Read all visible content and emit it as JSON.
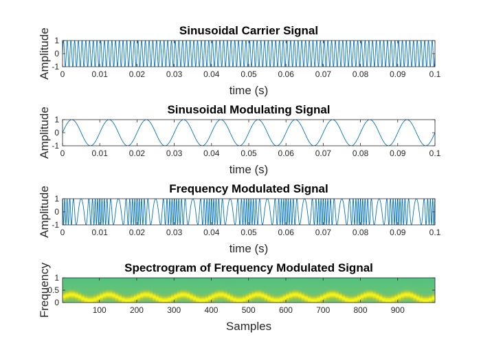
{
  "chart_data": [
    {
      "type": "line",
      "title": "Sinusoidal Carrier Signal",
      "xlabel": "time (s)",
      "ylabel": "Amplitude",
      "xlim": [
        0,
        0.1
      ],
      "ylim": [
        -1,
        1
      ],
      "xticks": [
        0,
        0.01,
        0.02,
        0.03,
        0.04,
        0.05,
        0.06,
        0.07,
        0.08,
        0.09,
        0.1
      ],
      "xtick_labels": [
        "0",
        "0.01",
        "0.02",
        "0.03",
        "0.04",
        "0.05",
        "0.06",
        "0.07",
        "0.08",
        "0.09",
        "0.1"
      ],
      "yticks": [
        -1,
        0,
        1
      ],
      "ytick_labels": [
        "-1",
        "0",
        "1"
      ],
      "series": [
        {
          "signal": "sin",
          "frequency_hz": 1000,
          "amplitude": 1,
          "color": "#0072BD"
        }
      ]
    },
    {
      "type": "line",
      "title": "Sinusoidal Modulating Signal",
      "xlabel": "time (s)",
      "ylabel": "Amplitude",
      "xlim": [
        0,
        0.1
      ],
      "ylim": [
        -1,
        1
      ],
      "xticks": [
        0,
        0.01,
        0.02,
        0.03,
        0.04,
        0.05,
        0.06,
        0.07,
        0.08,
        0.09,
        0.1
      ],
      "xtick_labels": [
        "0",
        "0.01",
        "0.02",
        "0.03",
        "0.04",
        "0.05",
        "0.06",
        "0.07",
        "0.08",
        "0.09",
        "0.1"
      ],
      "yticks": [
        -1,
        0,
        1
      ],
      "ytick_labels": [
        "-1",
        "0",
        "1"
      ],
      "series": [
        {
          "signal": "sin",
          "frequency_hz": 100,
          "amplitude": 1,
          "color": "#0072BD"
        }
      ]
    },
    {
      "type": "line",
      "title": "Frequency Modulated Signal",
      "xlabel": "time (s)",
      "ylabel": "Amplitude",
      "xlim": [
        0,
        0.1
      ],
      "ylim": [
        -1,
        1
      ],
      "xticks": [
        0,
        0.01,
        0.02,
        0.03,
        0.04,
        0.05,
        0.06,
        0.07,
        0.08,
        0.09,
        0.1
      ],
      "xtick_labels": [
        "0",
        "0.01",
        "0.02",
        "0.03",
        "0.04",
        "0.05",
        "0.06",
        "0.07",
        "0.08",
        "0.09",
        "0.1"
      ],
      "yticks": [
        -1,
        0,
        1
      ],
      "ytick_labels": [
        "-1",
        "0",
        "1"
      ],
      "series": [
        {
          "signal": "fm",
          "carrier_hz": 1000,
          "modulating_hz": 100,
          "modulation_index": 7,
          "amplitude": 1,
          "color": "#0072BD"
        }
      ]
    },
    {
      "type": "heatmap",
      "title": "Spectrogram of Frequency Modulated Signal",
      "xlabel": "Samples",
      "ylabel": "Frequency",
      "xlim": [
        1,
        1000
      ],
      "ylim": [
        0,
        1
      ],
      "xticks": [
        100,
        200,
        300,
        400,
        500,
        600,
        700,
        800,
        900
      ],
      "xtick_labels": [
        "100",
        "200",
        "300",
        "400",
        "500",
        "600",
        "700",
        "800",
        "900"
      ],
      "yticks": [
        0,
        0.5,
        1
      ],
      "ytick_labels": [
        "0",
        "0.5",
        "1"
      ],
      "ridge": {
        "center": 0.22,
        "deviation": 0.12,
        "period_samples": 100
      },
      "colors": {
        "low": "#2FBF9B",
        "mid": "#B8C93A",
        "high": "#F9F916"
      }
    }
  ]
}
